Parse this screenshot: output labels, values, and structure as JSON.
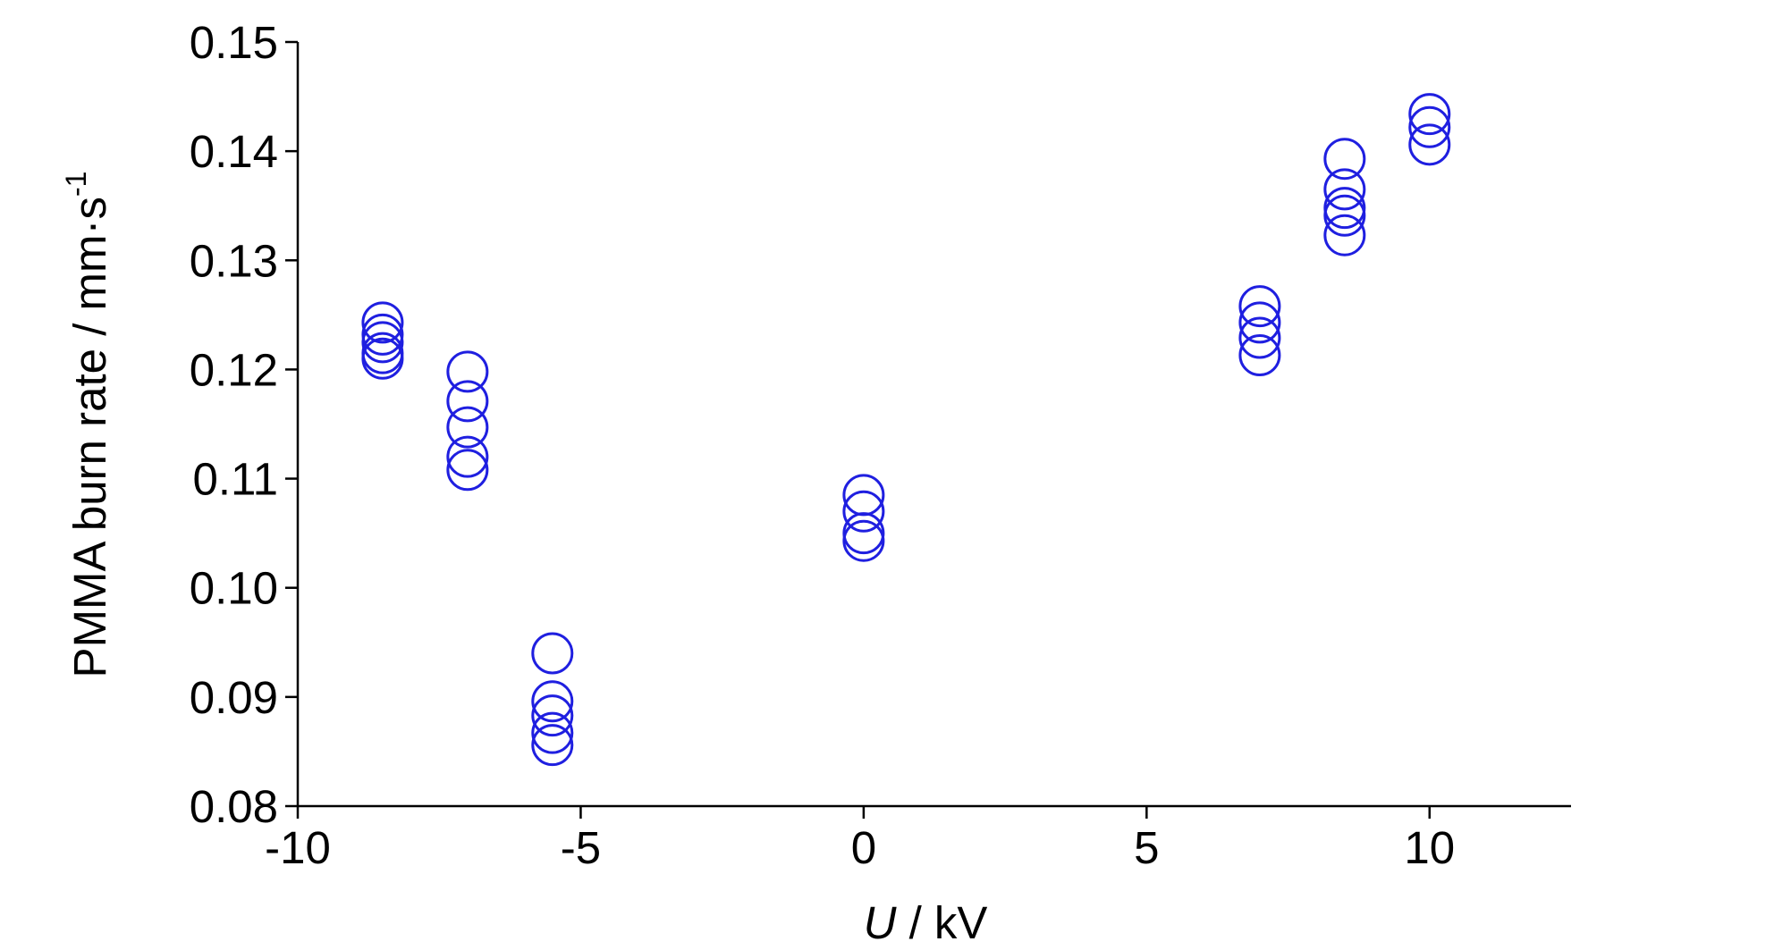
{
  "chart_data": {
    "type": "scatter",
    "xlabel": {
      "symbol": "U",
      "unit": "/ kV"
    },
    "ylabel": {
      "text": "PMMA burn rate / mm·s",
      "superscript": "-1"
    },
    "xlim": [
      -10,
      12.5
    ],
    "xticks": [
      -10,
      -5,
      0,
      5,
      10
    ],
    "ylim": [
      0.08,
      0.15
    ],
    "yticks": [
      0.08,
      0.09,
      {
        "value": 0.1,
        "label": "0.10"
      },
      0.11,
      0.12,
      0.13,
      0.14,
      0.15
    ],
    "series": [
      {
        "color": "#1f1fe0",
        "x": [
          -8.5,
          -8.5,
          -8.5,
          -8.5,
          -8.5,
          -7,
          -7,
          -7,
          -7,
          -7,
          -5.5,
          -5.5,
          -5.5,
          -5.5,
          -5.5,
          0,
          0,
          0,
          0,
          7,
          7,
          7,
          7,
          8.5,
          8.5,
          8.5,
          8.5,
          8.5,
          10,
          10,
          10
        ],
        "y": [
          0.121,
          0.1215,
          0.1225,
          0.1232,
          0.1243,
          0.1108,
          0.112,
          0.1147,
          0.1171,
          0.1198,
          0.0856,
          0.0867,
          0.0883,
          0.0896,
          0.094,
          0.1043,
          0.105,
          0.107,
          0.1085,
          0.1213,
          0.1229,
          0.1243,
          0.1258,
          0.1323,
          0.1341,
          0.1348,
          0.1365,
          0.1393,
          0.1406,
          0.1422,
          0.1434
        ]
      }
    ]
  }
}
